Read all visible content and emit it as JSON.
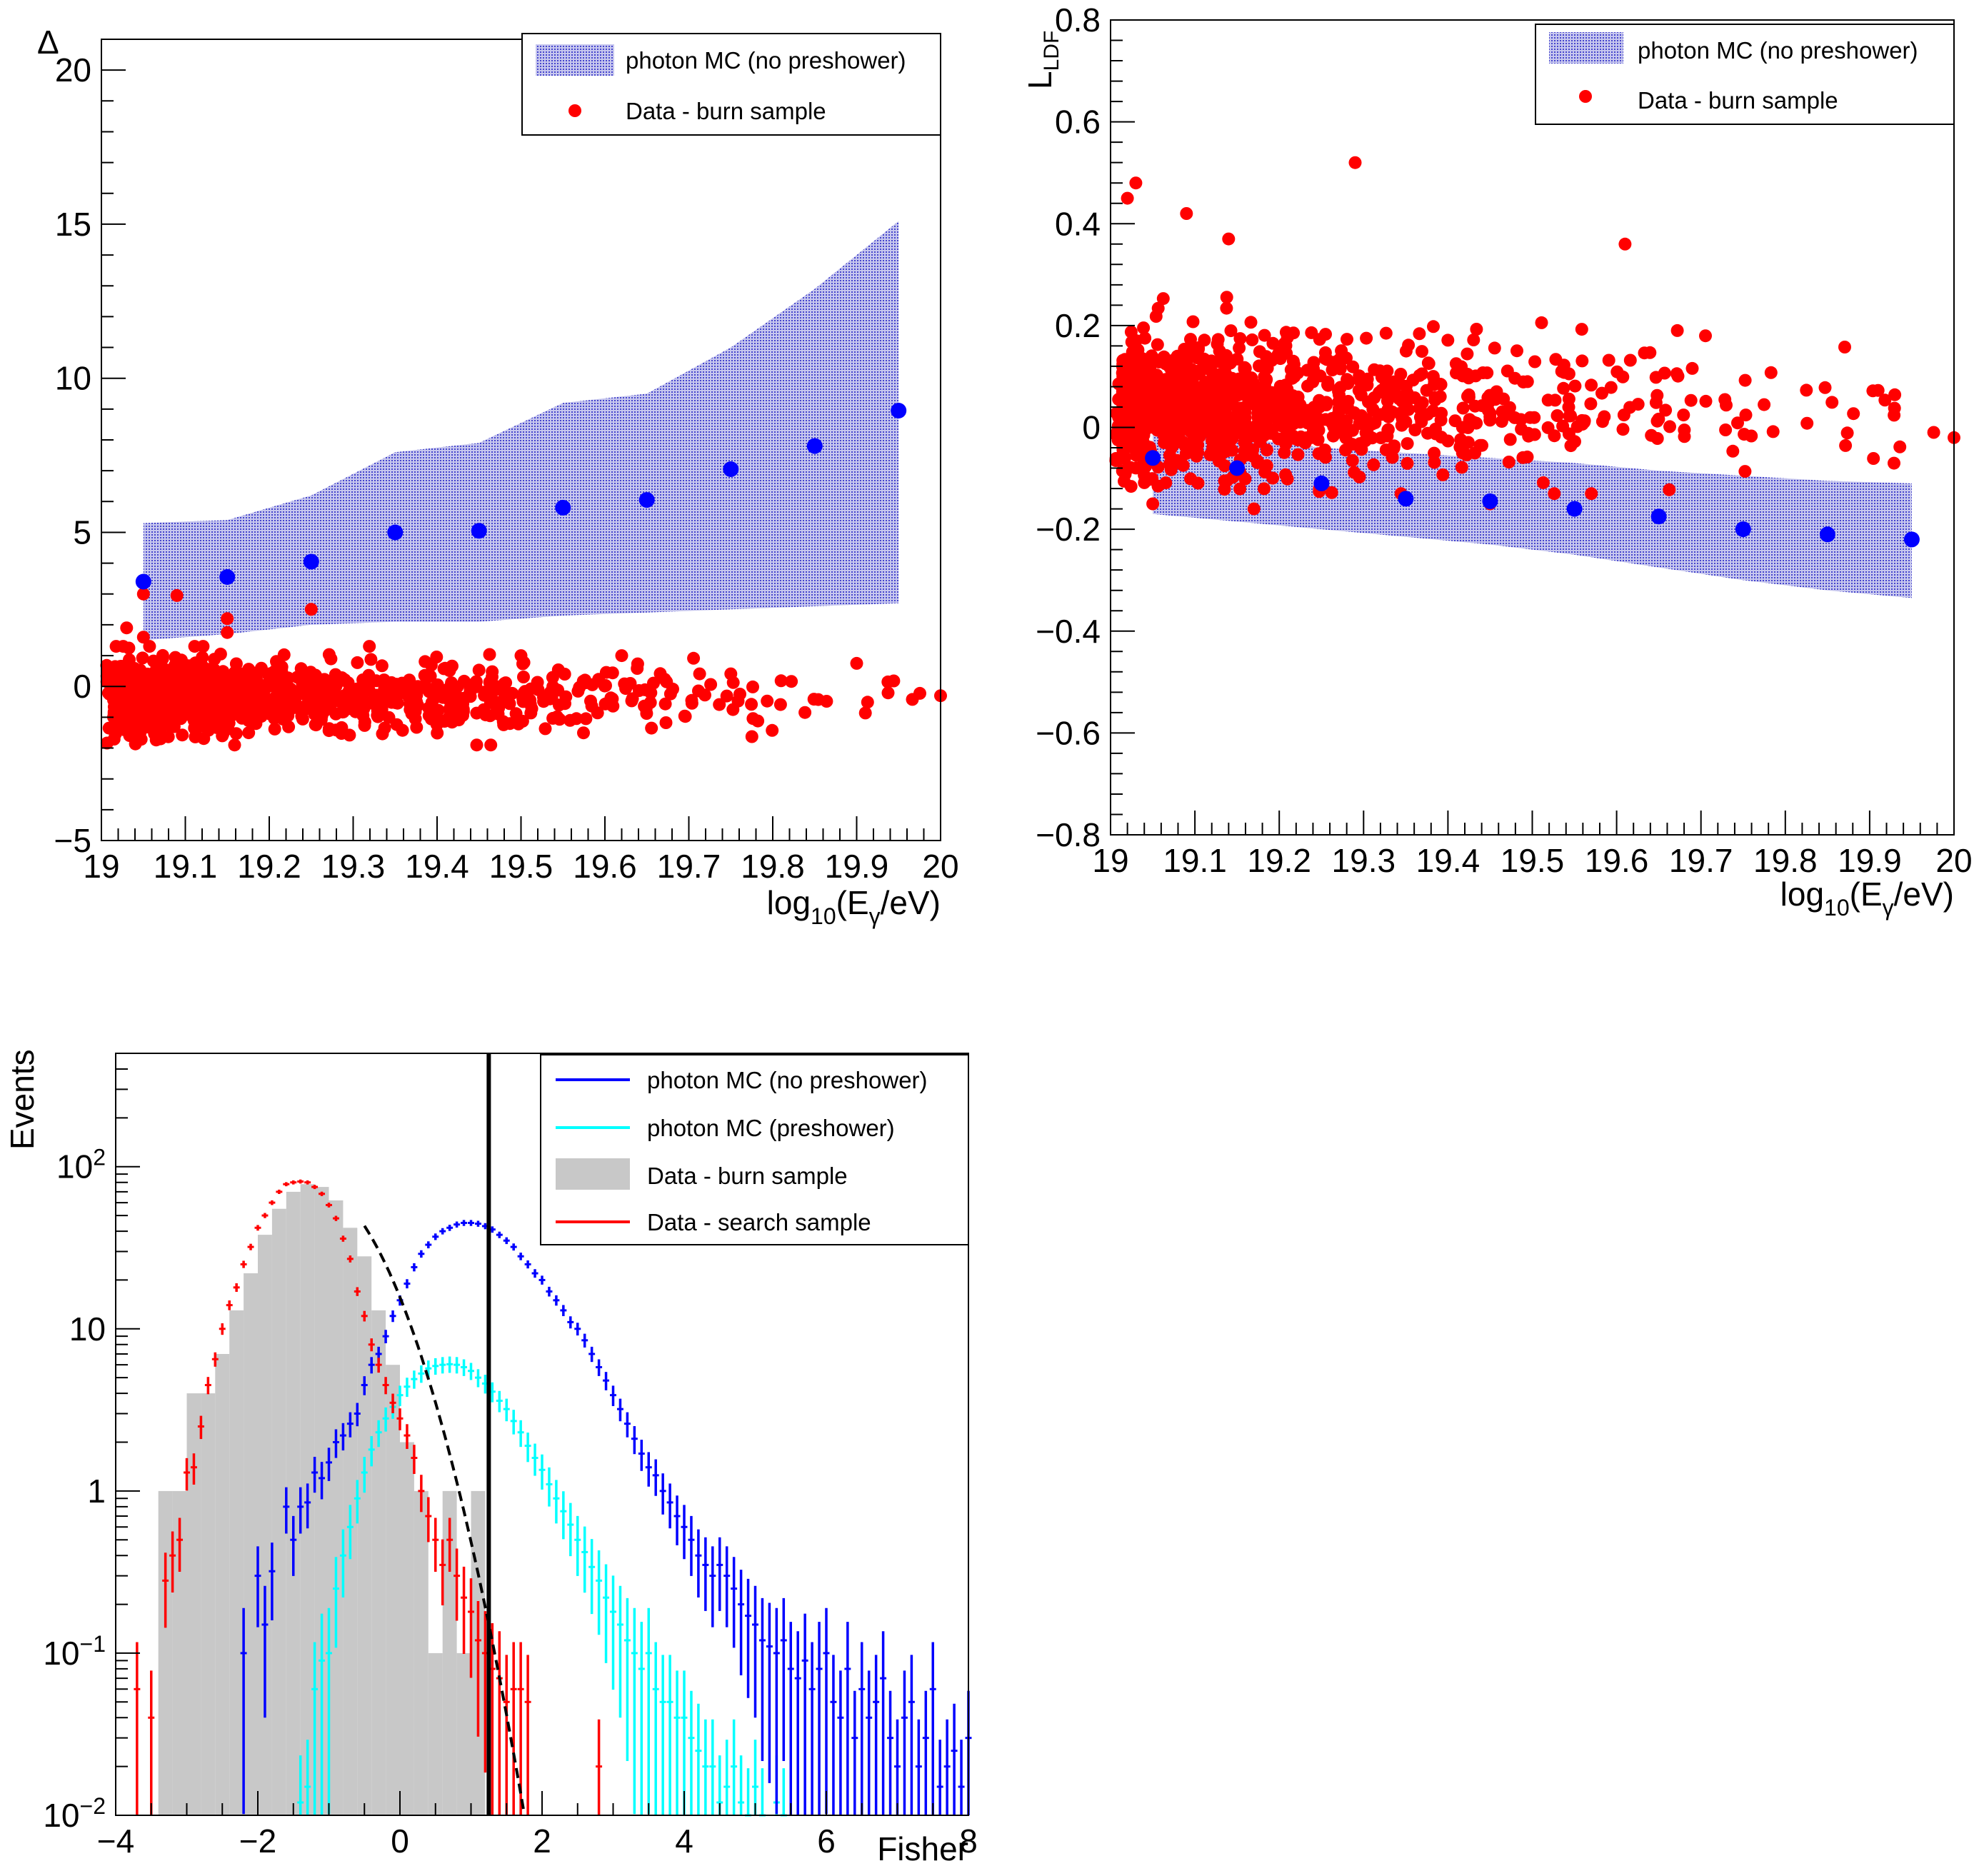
{
  "colors": {
    "red": "#ff0000",
    "blue": "#0000ff",
    "band": "#6666dd",
    "cyan": "#00ffff",
    "gray": "#c8c8c8",
    "frame": "#000000"
  },
  "chart_data": [
    {
      "type": "scatter",
      "panel": "top-left",
      "xlabel": {
        "base": "log",
        "sub1": "10",
        "mid": "(E",
        "sub2": "γ",
        "end": "/eV)"
      },
      "ylabel": "Δ",
      "xlim": [
        19,
        20
      ],
      "ylim": [
        -5,
        21
      ],
      "xticks": [
        19,
        19.1,
        19.2,
        19.3,
        19.4,
        19.5,
        19.6,
        19.7,
        19.8,
        19.9,
        20
      ],
      "xtick_labels": [
        "19",
        "19.1",
        "19.2",
        "19.3",
        "19.4",
        "19.5",
        "19.6",
        "19.7",
        "19.8",
        "19.9",
        "20"
      ],
      "yticks": [
        -5,
        0,
        5,
        10,
        15,
        20
      ],
      "ytick_labels": [
        "−5",
        "0",
        "5",
        "10",
        "15",
        "20"
      ],
      "legend": {
        "position": "top-right",
        "entries": [
          "photon MC (no preshower)",
          "Data - burn sample"
        ]
      },
      "mc_band": {
        "x": [
          19.05,
          19.15,
          19.25,
          19.35,
          19.45,
          19.55,
          19.65,
          19.75,
          19.85,
          19.95
        ],
        "upper": [
          5.3,
          5.4,
          6.2,
          7.6,
          7.9,
          9.2,
          9.5,
          11.0,
          12.9,
          15.1
        ],
        "lower": [
          1.5,
          1.7,
          2.0,
          2.1,
          2.1,
          2.3,
          2.4,
          2.5,
          2.6,
          2.7
        ]
      },
      "mc_mean": {
        "x": [
          19.05,
          19.15,
          19.25,
          19.35,
          19.45,
          19.55,
          19.65,
          19.75,
          19.85,
          19.95
        ],
        "y": [
          3.4,
          3.55,
          4.05,
          5.0,
          5.05,
          5.8,
          6.05,
          7.05,
          7.8,
          8.95
        ]
      },
      "data_scatter_params": {
        "seed": 11,
        "n": 1150,
        "xmin": 19.01,
        "xmax": 20.0,
        "tau": 0.21,
        "ymean": -0.3,
        "ysd": 0.55,
        "yclip": [
          -1.9,
          1.3
        ],
        "extra_x": [
          19.03,
          19.05,
          19.05,
          19.09,
          19.15,
          19.15,
          19.25,
          19.5,
          19.62,
          19.9,
          20.0
        ],
        "extra_y": [
          1.9,
          3.0,
          1.6,
          2.95,
          2.2,
          1.75,
          2.5,
          1.0,
          1.0,
          0.75,
          -0.3
        ]
      }
    },
    {
      "type": "scatter",
      "panel": "top-right",
      "xlabel": {
        "base": "log",
        "sub1": "10",
        "mid": "(E",
        "sub2": "γ",
        "end": "/eV)"
      },
      "ylabel": {
        "base": "L",
        "sub": "LDF"
      },
      "xlim": [
        19,
        20
      ],
      "ylim": [
        -0.8,
        0.8
      ],
      "xticks": [
        19,
        19.1,
        19.2,
        19.3,
        19.4,
        19.5,
        19.6,
        19.7,
        19.8,
        19.9,
        20
      ],
      "xtick_labels": [
        "19",
        "19.1",
        "19.2",
        "19.3",
        "19.4",
        "19.5",
        "19.6",
        "19.7",
        "19.8",
        "19.9",
        "20"
      ],
      "yticks": [
        -0.8,
        -0.6,
        -0.4,
        -0.2,
        0,
        0.2,
        0.4,
        0.6,
        0.8
      ],
      "ytick_labels": [
        "−0.8",
        "−0.6",
        "−0.4",
        "−0.2",
        "0",
        "0.2",
        "0.4",
        "0.6",
        "0.8"
      ],
      "legend": {
        "position": "top-right",
        "entries": [
          "photon MC (no preshower)",
          "Data - burn sample"
        ]
      },
      "mc_band": {
        "x": [
          19.05,
          19.15,
          19.25,
          19.35,
          19.45,
          19.55,
          19.65,
          19.75,
          19.85,
          19.95
        ],
        "upper": [
          -0.01,
          -0.02,
          -0.04,
          -0.05,
          -0.06,
          -0.07,
          -0.085,
          -0.095,
          -0.105,
          -0.11
        ],
        "lower": [
          -0.17,
          -0.185,
          -0.2,
          -0.215,
          -0.23,
          -0.25,
          -0.275,
          -0.3,
          -0.32,
          -0.335
        ]
      },
      "mc_mean": {
        "x": [
          19.05,
          19.15,
          19.25,
          19.35,
          19.45,
          19.55,
          19.65,
          19.75,
          19.85,
          19.95
        ],
        "y": [
          -0.06,
          -0.08,
          -0.11,
          -0.14,
          -0.145,
          -0.16,
          -0.175,
          -0.2,
          -0.21,
          -0.22
        ]
      },
      "data_scatter_params": {
        "seed": 23,
        "n": 1100,
        "xmin": 19.01,
        "xmax": 20.0,
        "tau": 0.2,
        "ymean": 0.04,
        "ysd": 0.065,
        "yclip": [
          -0.13,
          0.3
        ],
        "extra_x": [
          19.02,
          19.03,
          19.05,
          19.09,
          19.14,
          19.17,
          19.29,
          19.45,
          19.57,
          19.61,
          20.0
        ],
        "extra_y": [
          0.45,
          0.48,
          -0.15,
          0.42,
          0.37,
          -0.16,
          0.52,
          -0.15,
          -0.13,
          0.36,
          -0.02
        ]
      }
    },
    {
      "type": "histogram",
      "panel": "bottom-left",
      "xlabel": "Fisher",
      "ylabel": "Events",
      "yscale": "log",
      "xlim": [
        -4,
        8
      ],
      "ylim": [
        0.01,
        500
      ],
      "xticks": [
        -4,
        -2,
        0,
        2,
        4,
        6,
        8
      ],
      "xtick_labels": [
        "−4",
        "−2",
        "0",
        "2",
        "4",
        "6",
        "8"
      ],
      "yticks": [
        0.01,
        0.1,
        1,
        10,
        100
      ],
      "ytick_labels": [
        {
          "base": "10",
          "exp": "−2"
        },
        {
          "base": "10",
          "exp": "−1"
        },
        {
          "base": "1",
          "exp": ""
        },
        {
          "base": "10",
          "exp": ""
        },
        {
          "base": "10",
          "exp": "2"
        }
      ],
      "cut_value": 1.25,
      "legend": {
        "position": "top-right",
        "entries": [
          "photon MC (no preshower)",
          "photon MC (preshower)",
          "Data - burn sample",
          "Data - search sample"
        ]
      },
      "burn_sample": {
        "bin_width": 0.2,
        "bins": [
          [
            -3.4,
            1
          ],
          [
            -3.2,
            1
          ],
          [
            -3.0,
            4
          ],
          [
            -2.8,
            4
          ],
          [
            -2.6,
            7
          ],
          [
            -2.4,
            13
          ],
          [
            -2.2,
            22
          ],
          [
            -2.0,
            38
          ],
          [
            -1.8,
            55
          ],
          [
            -1.6,
            70
          ],
          [
            -1.4,
            78
          ],
          [
            -1.2,
            75
          ],
          [
            -1.0,
            62
          ],
          [
            -0.8,
            42
          ],
          [
            -0.6,
            28
          ],
          [
            -0.4,
            13
          ],
          [
            -0.2,
            6
          ],
          [
            0.0,
            2
          ],
          [
            0.2,
            1
          ],
          [
            0.4,
            0.1
          ],
          [
            0.6,
            1
          ],
          [
            0.8,
            0.1
          ],
          [
            1.0,
            1
          ]
        ]
      },
      "search_sample": {
        "x": [
          -3.7,
          -3.5,
          -3.3,
          -3.2,
          -3.1,
          -3.0,
          -2.9,
          -2.8,
          -2.7,
          -2.6,
          -2.5,
          -2.4,
          -2.3,
          -2.2,
          -2.1,
          -2.0,
          -1.9,
          -1.8,
          -1.7,
          -1.6,
          -1.5,
          -1.4,
          -1.3,
          -1.2,
          -1.1,
          -1.0,
          -0.9,
          -0.8,
          -0.7,
          -0.6,
          -0.5,
          -0.4,
          -0.3,
          -0.2,
          -0.1,
          0.0,
          0.1,
          0.2,
          0.3,
          0.4,
          0.5,
          0.6,
          0.7,
          0.8,
          0.9,
          1.0,
          1.1,
          1.2,
          1.3,
          1.4,
          1.5,
          1.6,
          1.7,
          1.8,
          2.8
        ],
        "y": [
          0.06,
          0.04,
          0.28,
          0.4,
          0.5,
          1.3,
          1.4,
          2.5,
          4.5,
          6.5,
          10,
          14,
          18,
          25,
          32,
          42,
          50,
          60,
          70,
          78,
          80,
          81,
          80,
          75,
          68,
          58,
          48,
          36,
          27,
          17,
          12,
          8,
          6,
          4.5,
          3.5,
          2.8,
          2.2,
          1.6,
          1.0,
          0.7,
          0.5,
          0.35,
          0.5,
          0.3,
          0.22,
          0.18,
          0.12,
          0.1,
          0.08,
          0.07,
          0.05,
          0.06,
          0.06,
          0.05,
          0.02
        ]
      },
      "photon_mc_no_preshower": {
        "x": [
          -2.2,
          -2.0,
          -1.9,
          -1.8,
          -1.6,
          -1.5,
          -1.4,
          -1.3,
          -1.2,
          -1.1,
          -1.0,
          -0.9,
          -0.8,
          -0.7,
          -0.6,
          -0.5,
          -0.4,
          -0.3,
          -0.2,
          -0.1,
          0.0,
          0.1,
          0.2,
          0.3,
          0.4,
          0.5,
          0.6,
          0.7,
          0.8,
          0.9,
          1.0,
          1.1,
          1.2,
          1.3,
          1.4,
          1.5,
          1.6,
          1.7,
          1.8,
          1.9,
          2.0,
          2.1,
          2.2,
          2.3,
          2.4,
          2.5,
          2.6,
          2.7,
          2.8,
          2.9,
          3.0,
          3.1,
          3.2,
          3.3,
          3.4,
          3.5,
          3.6,
          3.7,
          3.8,
          3.9,
          4.0,
          4.1,
          4.2,
          4.3,
          4.4,
          4.5,
          4.6,
          4.7,
          4.8,
          4.9,
          5.0,
          5.1,
          5.2,
          5.3,
          5.4,
          5.5,
          5.6,
          5.7,
          5.8,
          5.9,
          6.0,
          6.1,
          6.2,
          6.3,
          6.4,
          6.5,
          6.6,
          6.7,
          6.8,
          6.9,
          7.0,
          7.1,
          7.2,
          7.3,
          7.4,
          7.5,
          7.6,
          7.7,
          7.8,
          7.9,
          8.0
        ],
        "y": [
          0.1,
          0.3,
          0.15,
          0.32,
          0.8,
          0.5,
          0.8,
          0.85,
          1.3,
          1.2,
          1.5,
          2.0,
          2.2,
          2.6,
          3.0,
          4.5,
          6.0,
          7.0,
          9.0,
          12,
          15,
          19,
          24,
          29,
          33,
          37,
          40,
          42,
          44,
          45,
          45,
          44.5,
          43,
          41,
          38,
          35,
          32,
          28,
          25,
          22,
          20,
          17,
          15,
          13,
          11,
          10,
          8.5,
          7.0,
          5.8,
          4.8,
          3.9,
          3.2,
          2.6,
          2.1,
          1.7,
          1.4,
          1.25,
          1.0,
          0.85,
          0.7,
          0.6,
          0.5,
          0.4,
          0.35,
          0.3,
          0.35,
          0.3,
          0.25,
          0.2,
          0.17,
          0.15,
          0.12,
          0.11,
          0.1,
          0.12,
          0.08,
          0.07,
          0.09,
          0.06,
          0.08,
          0.1,
          0.05,
          0.04,
          0.08,
          0.03,
          0.06,
          0.04,
          0.05,
          0.07,
          0.03,
          0.02,
          0.04,
          0.05,
          0.02,
          0.03,
          0.06,
          0.015,
          0.02,
          0.025,
          0.015,
          0.03
        ]
      },
      "photon_mc_preshower": {
        "x": [
          -1.4,
          -1.3,
          -1.2,
          -1.1,
          -1.0,
          -0.9,
          -0.8,
          -0.7,
          -0.6,
          -0.5,
          -0.4,
          -0.3,
          -0.2,
          -0.1,
          0.0,
          0.1,
          0.2,
          0.3,
          0.4,
          0.5,
          0.6,
          0.7,
          0.8,
          0.9,
          1.0,
          1.1,
          1.2,
          1.3,
          1.4,
          1.5,
          1.6,
          1.7,
          1.8,
          1.9,
          2.0,
          2.1,
          2.2,
          2.3,
          2.4,
          2.5,
          2.6,
          2.7,
          2.8,
          2.9,
          3.0,
          3.1,
          3.2,
          3.3,
          3.4,
          3.5,
          3.6,
          3.7,
          3.8,
          3.9,
          4.0,
          4.1,
          4.2,
          4.3,
          4.4,
          4.5,
          4.6,
          4.7,
          4.8,
          4.9,
          5.0,
          5.1,
          5.2,
          5.3,
          5.4,
          5.5
        ],
        "y": [
          0.012,
          0.015,
          0.06,
          0.09,
          0.1,
          0.25,
          0.4,
          0.6,
          0.9,
          1.3,
          1.8,
          2.3,
          2.8,
          3.3,
          3.9,
          4.4,
          4.9,
          5.3,
          5.7,
          5.9,
          6.0,
          6.05,
          6.0,
          5.8,
          5.5,
          5.0,
          4.6,
          4.1,
          3.6,
          3.2,
          2.7,
          2.3,
          1.9,
          1.6,
          1.35,
          1.1,
          0.9,
          0.75,
          0.62,
          0.5,
          0.42,
          0.34,
          0.28,
          0.22,
          0.18,
          0.15,
          0.12,
          0.1,
          0.08,
          0.1,
          0.06,
          0.05,
          0.05,
          0.04,
          0.04,
          0.03,
          0.025,
          0.02,
          0.02,
          0.012,
          0.015,
          0.02,
          0.012,
          0.01,
          0.015,
          0.01,
          0.008,
          0.012,
          0.01,
          0.009
        ]
      },
      "fit_curve": {
        "peak_x": -1.3,
        "peak_y": 80,
        "sigma": 0.72,
        "x_start": -0.5,
        "x_end": 2.3
      }
    }
  ]
}
